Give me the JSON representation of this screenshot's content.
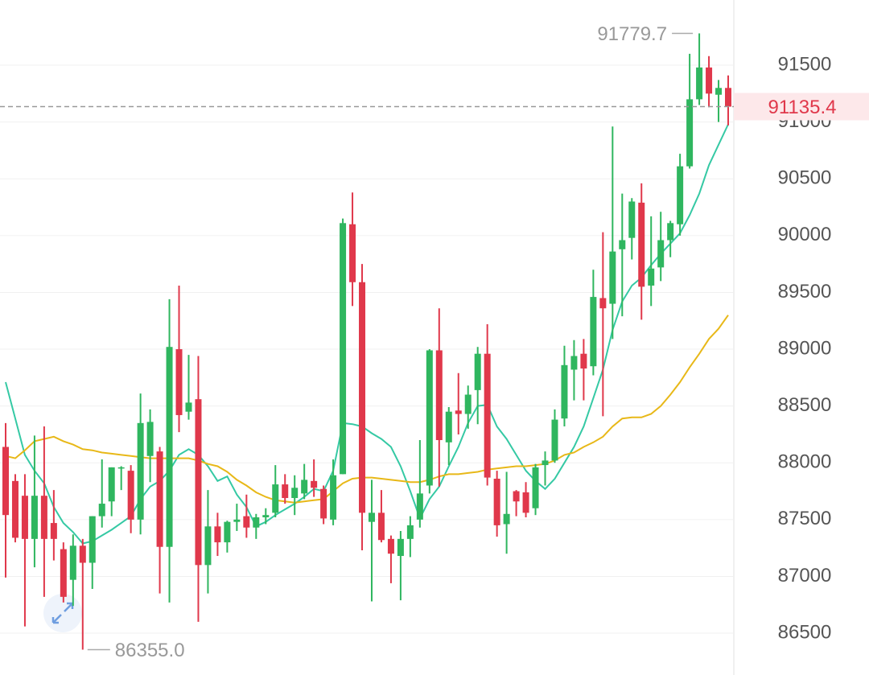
{
  "chart_data": {
    "type": "candlestick",
    "up_color": "#2fb65f",
    "down_color": "#e0384b",
    "ylim": [
      86132,
      92074
    ],
    "yticks": [
      86500,
      87000,
      87500,
      88000,
      88500,
      89000,
      89500,
      90000,
      90500,
      91000,
      91500
    ],
    "grid": true,
    "open": [
      88140,
      87840,
      87710,
      87330,
      87710,
      87470,
      87240,
      86970,
      87270,
      87120,
      87530,
      87660,
      87950,
      87930,
      87500,
      88060,
      88100,
      87260,
      89000,
      88450,
      88560,
      87100,
      87440,
      87300,
      87480,
      87530,
      87430,
      87520,
      87560,
      87810,
      87690,
      87730,
      87840,
      87770,
      87500,
      87900,
      90100,
      89590,
      87480,
      87560,
      87330,
      87180,
      87330,
      87500,
      87800,
      88990,
      88180,
      88460,
      88430,
      88640,
      88960,
      87860,
      87460,
      87750,
      87740,
      87600,
      87980,
      88020,
      88390,
      88820,
      88960,
      88850,
      89450,
      89400,
      89880,
      89980,
      90290,
      89560,
      89720,
      89960,
      90100,
      90610,
      91200,
      91480,
      91240,
      91300
    ],
    "high": [
      88350,
      87900,
      87900,
      88240,
      88320,
      87760,
      87300,
      87370,
      87330,
      87530,
      88030,
      87960,
      87970,
      87980,
      88610,
      88470,
      88140,
      89440,
      89560,
      88950,
      88940,
      87760,
      87560,
      87490,
      87640,
      87720,
      87550,
      87600,
      87980,
      87900,
      87890,
      87990,
      88030,
      87800,
      88030,
      90150,
      90380,
      89750,
      87850,
      87760,
      87360,
      87400,
      87530,
      88200,
      89000,
      89360,
      88490,
      88790,
      88680,
      89020,
      89220,
      87930,
      87920,
      87760,
      87830,
      87990,
      88100,
      88470,
      89030,
      89080,
      89090,
      89700,
      90030,
      90960,
      90370,
      90330,
      90460,
      90170,
      90210,
      90130,
      90720,
      91600,
      91779.7,
      91580,
      91370,
      91410
    ],
    "low": [
      86990,
      87300,
      86560,
      87080,
      86820,
      87140,
      86770,
      86740,
      86355,
      86890,
      87430,
      87530,
      87760,
      87380,
      87370,
      87830,
      86850,
      86770,
      88270,
      88380,
      86600,
      86850,
      87180,
      87210,
      87400,
      87340,
      87330,
      87460,
      87520,
      87640,
      87540,
      87680,
      87700,
      87460,
      87450,
      87900,
      89380,
      87230,
      86780,
      87300,
      86940,
      86790,
      87170,
      87430,
      87730,
      87790,
      87980,
      88250,
      88300,
      88340,
      87800,
      87350,
      87200,
      87530,
      87520,
      87540,
      87800,
      88000,
      88320,
      88550,
      88550,
      88770,
      88410,
      89090,
      89290,
      89790,
      89260,
      89380,
      89600,
      89810,
      90000,
      90590,
      91150,
      91130,
      91000,
      90970
    ],
    "close": [
      87540,
      87340,
      87330,
      87710,
      87330,
      87330,
      86820,
      87270,
      87120,
      87530,
      87640,
      87960,
      87960,
      87500,
      88350,
      88360,
      87260,
      89020,
      88420,
      88530,
      87100,
      87440,
      87300,
      87480,
      87500,
      87430,
      87520,
      87540,
      87810,
      87690,
      87780,
      87850,
      87780,
      87510,
      87890,
      90110,
      89590,
      87560,
      87560,
      87320,
      87200,
      87330,
      87450,
      87730,
      88990,
      88200,
      88450,
      88430,
      88600,
      88960,
      87870,
      87450,
      87550,
      87660,
      87560,
      87960,
      88020,
      88380,
      88860,
      88940,
      88830,
      89460,
      89360,
      89860,
      89960,
      90300,
      89550,
      89710,
      89960,
      90110,
      90610,
      91200,
      91480,
      91250,
      91300,
      91135.4
    ],
    "series": [
      {
        "color": "#35c9a4",
        "values": [
          88710,
          88390,
          88070,
          87930,
          87820,
          87610,
          87470,
          87390,
          87290,
          87310,
          87360,
          87410,
          87470,
          87530,
          87680,
          87790,
          87840,
          87930,
          88070,
          88120,
          88070,
          87970,
          87840,
          87880,
          87720,
          87610,
          87440,
          87480,
          87540,
          87590,
          87640,
          87700,
          87770,
          87750,
          87930,
          88350,
          88340,
          88320,
          88260,
          88210,
          88140,
          87970,
          87750,
          87510,
          87680,
          87790,
          87970,
          88140,
          88350,
          88500,
          88510,
          88320,
          88210,
          88070,
          87930,
          87840,
          87770,
          87860,
          88000,
          88140,
          88320,
          88570,
          88820,
          89170,
          89420,
          89560,
          89630,
          89740,
          89840,
          89930,
          90020,
          90180,
          90370,
          90620,
          90800,
          90980
        ]
      },
      {
        "color": "#e8b818",
        "values": [
          88060,
          88040,
          88110,
          88190,
          88210,
          88230,
          88190,
          88160,
          88120,
          88110,
          88090,
          88080,
          88070,
          88060,
          88050,
          88040,
          88040,
          88040,
          88040,
          88040,
          88020,
          87990,
          87970,
          87920,
          87850,
          87800,
          87740,
          87700,
          87670,
          87660,
          87650,
          87660,
          87670,
          87680,
          87750,
          87820,
          87860,
          87870,
          87870,
          87860,
          87850,
          87840,
          87830,
          87830,
          87850,
          87880,
          87900,
          87900,
          87910,
          87920,
          87940,
          87950,
          87960,
          87970,
          87970,
          87980,
          87990,
          88020,
          88070,
          88090,
          88140,
          88180,
          88230,
          88320,
          88390,
          88400,
          88400,
          88430,
          88500,
          88600,
          88710,
          88840,
          88960,
          89090,
          89180,
          89300
        ]
      }
    ],
    "max_label": 91779.7,
    "min_label": {
      "value": 86355,
      "label": "86355.0"
    },
    "last_price": 91135.4
  }
}
